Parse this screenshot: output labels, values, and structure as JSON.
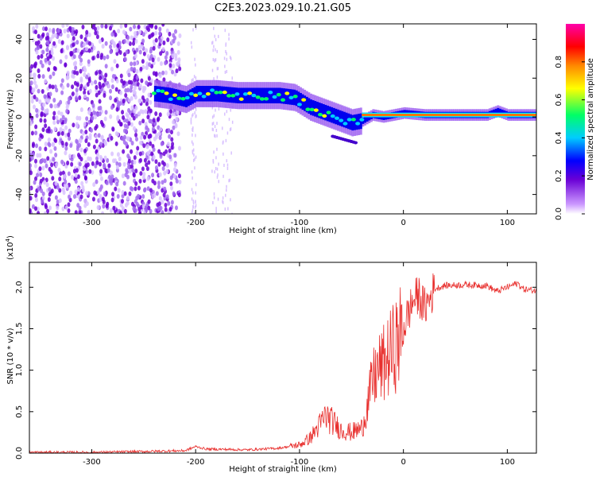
{
  "title": "C2E3.2023.029.10.21.G05",
  "chart_data": [
    {
      "type": "heatmap",
      "xlabel": "Height of straight line (km)",
      "ylabel": "Frequency (Hz)",
      "xlim": [
        -360,
        128
      ],
      "ylim": [
        -50,
        48
      ],
      "xticks": [
        -300,
        -200,
        -100,
        0,
        100
      ],
      "yticks": [
        -40,
        -20,
        0,
        20,
        40
      ],
      "colorbar": {
        "label": "Normalized spectral amplitude",
        "range": [
          0.0,
          1.0
        ],
        "ticks": [
          0.0,
          0.2,
          0.4,
          0.6,
          0.8
        ],
        "colormap": [
          "#ffffff",
          "#cc99ff",
          "#6a00d6",
          "#0000ff",
          "#00ccff",
          "#00ff66",
          "#ffff00",
          "#ff8800",
          "#ff0000",
          "#ff00aa"
        ]
      },
      "ridge": {
        "x": [
          -240,
          -225,
          -210,
          -200,
          -180,
          -160,
          -140,
          -120,
          -105,
          -90,
          -80,
          -70,
          -60,
          -50,
          -40,
          -30,
          -20,
          -10,
          0,
          20,
          40,
          60,
          80,
          90,
          100,
          128
        ],
        "y": [
          12,
          11,
          9,
          12,
          12,
          11,
          11,
          11,
          10,
          5,
          3,
          1,
          -1,
          -3,
          -2,
          1,
          0,
          1,
          2,
          1,
          1,
          1,
          1,
          3,
          1,
          1
        ]
      },
      "noise_region": {
        "x": [
          -360,
          -215
        ],
        "y": [
          -50,
          48
        ]
      }
    },
    {
      "type": "line",
      "xlabel": "Height of straight line (km)",
      "ylabel": "SNR (10 * v/v)",
      "y_multiplier": "(x10",
      "y_multiplier_exp": "4",
      "y_multiplier_close": ")",
      "xlim": [
        -360,
        128
      ],
      "ylim": [
        0,
        2.3
      ],
      "xticks": [
        -300,
        -200,
        -100,
        0,
        100
      ],
      "yticks": [
        0.0,
        0.5,
        1.0,
        1.5,
        2.0
      ],
      "color": "#e8302e",
      "x": [
        -360,
        -300,
        -250,
        -210,
        -200,
        -190,
        -150,
        -120,
        -100,
        -90,
        -80,
        -75,
        -70,
        -60,
        -50,
        -40,
        -35,
        -30,
        -25,
        -20,
        -15,
        -10,
        -5,
        0,
        5,
        10,
        15,
        20,
        25,
        30,
        40,
        60,
        80,
        90,
        100,
        110,
        115,
        120,
        128
      ],
      "y": [
        0.01,
        0.01,
        0.02,
        0.03,
        0.08,
        0.05,
        0.04,
        0.06,
        0.1,
        0.18,
        0.35,
        0.45,
        0.4,
        0.28,
        0.25,
        0.3,
        0.55,
        0.85,
        1.0,
        1.05,
        1.15,
        1.25,
        1.35,
        1.5,
        1.7,
        1.85,
        1.9,
        1.75,
        1.85,
        1.98,
        2.02,
        2.03,
        2.02,
        1.95,
        2.0,
        2.05,
        1.98,
        1.97,
        1.96
      ]
    }
  ]
}
